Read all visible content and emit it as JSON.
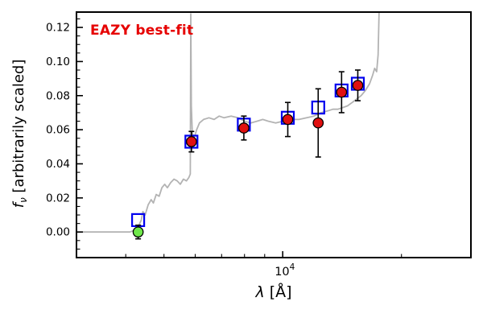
{
  "annotation": {
    "text": "EAZY best-fit",
    "color": "#e60000"
  },
  "axes": {
    "xlabel": {
      "math": "λ",
      "rest": " [Å]"
    },
    "ylabel": {
      "math": "f",
      "sub": "ν",
      "rest": " [arbitrarily scaled]"
    }
  },
  "style": {
    "frame_color": "#000000",
    "background": "#ffffff",
    "tick_color": "#000000",
    "tick_direction": "in",
    "spectrum_color": "#b3b3b3",
    "model_square_color": "#0000ee",
    "observed_color": "#e01010",
    "nondetection_color": "#6fe84a",
    "errorbar_color": "#000000"
  },
  "chart_data": {
    "type": "line",
    "title": "",
    "xlabel": "lambda [Angstrom]",
    "ylabel": "f_nu [arbitrarily scaled]",
    "xscale": "log",
    "xlim": [
      3000,
      30000
    ],
    "ylim": [
      -0.015,
      0.129
    ],
    "grid": false,
    "legend": "none",
    "xticks": [
      {
        "v": 10000,
        "base": "10",
        "exp": "4"
      }
    ],
    "xminor": [
      4000,
      5000,
      6000,
      7000,
      8000,
      9000,
      20000
    ],
    "yticks": [
      {
        "v": 0.0,
        "label": "0.00"
      },
      {
        "v": 0.02,
        "label": "0.02"
      },
      {
        "v": 0.04,
        "label": "0.04"
      },
      {
        "v": 0.06,
        "label": "0.06"
      },
      {
        "v": 0.08,
        "label": "0.08"
      },
      {
        "v": 0.1,
        "label": "0.10"
      },
      {
        "v": 0.12,
        "label": "0.12"
      }
    ],
    "yminor_step": 0.005,
    "series": [
      {
        "name": "best-fit template spectrum",
        "kind": "line",
        "points": [
          [
            3000,
            0.0
          ],
          [
            3600,
            0.0
          ],
          [
            4100,
            0.0
          ],
          [
            4200,
            0.001
          ],
          [
            4300,
            0.003
          ],
          [
            4380,
            0.007
          ],
          [
            4420,
            0.012
          ],
          [
            4480,
            0.01
          ],
          [
            4560,
            0.016
          ],
          [
            4640,
            0.019
          ],
          [
            4700,
            0.017
          ],
          [
            4780,
            0.022
          ],
          [
            4860,
            0.021
          ],
          [
            4940,
            0.026
          ],
          [
            5020,
            0.028
          ],
          [
            5100,
            0.026
          ],
          [
            5200,
            0.029
          ],
          [
            5300,
            0.031
          ],
          [
            5400,
            0.03
          ],
          [
            5500,
            0.028
          ],
          [
            5600,
            0.031
          ],
          [
            5700,
            0.03
          ],
          [
            5780,
            0.032
          ],
          [
            5830,
            0.034
          ],
          [
            5848,
            0.128
          ],
          [
            5866,
            0.074
          ],
          [
            5900,
            0.058
          ],
          [
            5960,
            0.055
          ],
          [
            6050,
            0.06
          ],
          [
            6150,
            0.064
          ],
          [
            6300,
            0.066
          ],
          [
            6500,
            0.067
          ],
          [
            6700,
            0.066
          ],
          [
            6900,
            0.068
          ],
          [
            7100,
            0.067
          ],
          [
            7400,
            0.068
          ],
          [
            7700,
            0.067
          ],
          [
            8000,
            0.065
          ],
          [
            8300,
            0.064
          ],
          [
            8600,
            0.065
          ],
          [
            8900,
            0.066
          ],
          [
            9200,
            0.065
          ],
          [
            9600,
            0.064
          ],
          [
            10000,
            0.065
          ],
          [
            10500,
            0.066
          ],
          [
            11000,
            0.066
          ],
          [
            11500,
            0.067
          ],
          [
            12000,
            0.068
          ],
          [
            12500,
            0.07
          ],
          [
            13000,
            0.071
          ],
          [
            13400,
            0.072
          ],
          [
            13800,
            0.072
          ],
          [
            14200,
            0.073
          ],
          [
            14600,
            0.074
          ],
          [
            15000,
            0.076
          ],
          [
            15400,
            0.078
          ],
          [
            15800,
            0.08
          ],
          [
            16200,
            0.083
          ],
          [
            16600,
            0.087
          ],
          [
            16900,
            0.092
          ],
          [
            17100,
            0.096
          ],
          [
            17300,
            0.094
          ],
          [
            17450,
            0.104
          ],
          [
            17550,
            0.129
          ]
        ]
      },
      {
        "name": "model photometry",
        "kind": "scatter",
        "marker": "open-square",
        "x": [
          4300,
          5870,
          7970,
          10300,
          12300,
          14100,
          15500
        ],
        "y": [
          0.007,
          0.053,
          0.063,
          0.067,
          0.073,
          0.083,
          0.087
        ]
      },
      {
        "name": "observed photometry",
        "kind": "scatter-err",
        "marker": "circle",
        "x": [
          5870,
          7970,
          10300,
          12300,
          14100,
          15500
        ],
        "y": [
          0.053,
          0.061,
          0.066,
          0.064,
          0.082,
          0.086
        ],
        "yerr": [
          0.006,
          0.007,
          0.01,
          0.02,
          0.012,
          0.009
        ]
      },
      {
        "name": "non-detection",
        "kind": "scatter-err",
        "marker": "circle",
        "x": [
          4300
        ],
        "y": [
          0.0
        ],
        "yerr": [
          0.004
        ]
      }
    ]
  }
}
